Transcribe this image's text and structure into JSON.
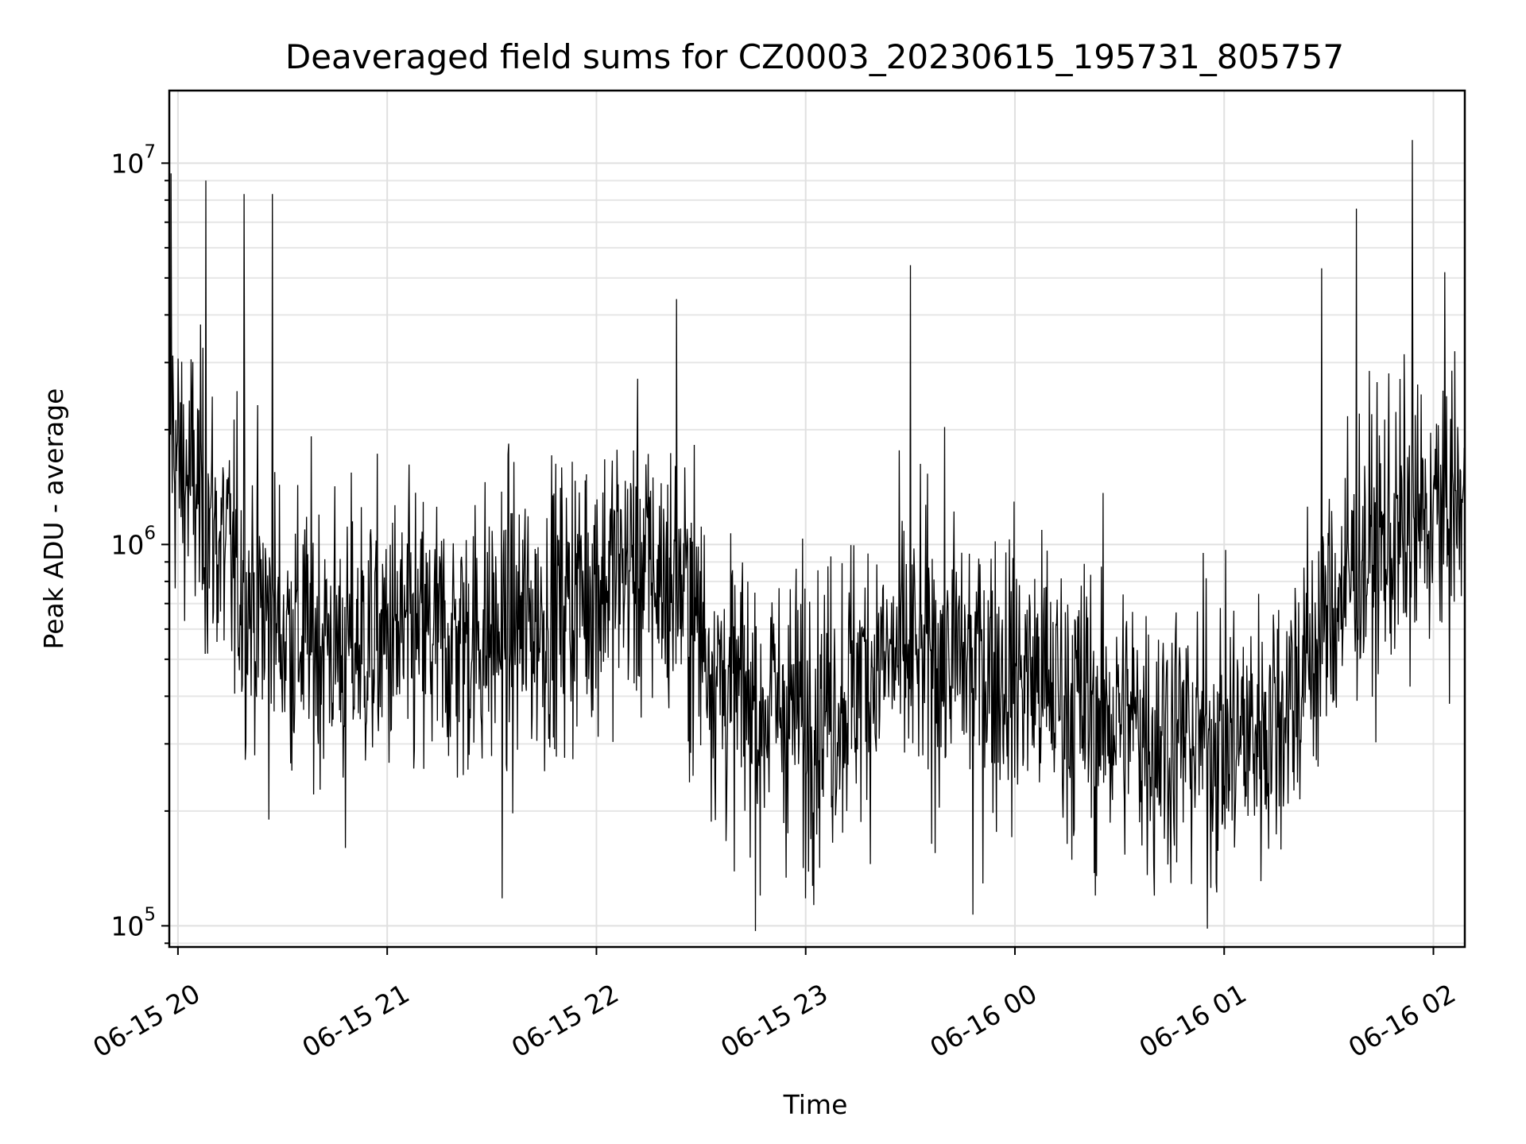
{
  "chart_data": {
    "type": "line",
    "title": "Deaveraged field sums for CZ0003_20230615_195731_805757",
    "xlabel": "Time",
    "ylabel": "Peak ADU - average",
    "yscale": "log",
    "ylim": [
      88000,
      15500000
    ],
    "xlim": [
      "2023-06-15 19:57:31",
      "2023-06-16 02:09:00"
    ],
    "grid": true,
    "x_ticks": [
      {
        "value": "2023-06-15 20:00",
        "label": "06-15 20"
      },
      {
        "value": "2023-06-15 21:00",
        "label": "06-15 21"
      },
      {
        "value": "2023-06-15 22:00",
        "label": "06-15 22"
      },
      {
        "value": "2023-06-15 23:00",
        "label": "06-15 23"
      },
      {
        "value": "2023-06-16 00:00",
        "label": "06-16 00"
      },
      {
        "value": "2023-06-16 01:00",
        "label": "06-16 01"
      },
      {
        "value": "2023-06-16 02:00",
        "label": "06-16 02"
      }
    ],
    "y_ticks": [
      {
        "value": 100000,
        "base": "10",
        "exp": "5"
      },
      {
        "value": 1000000,
        "base": "10",
        "exp": "6"
      },
      {
        "value": 10000000,
        "base": "10",
        "exp": "7"
      }
    ],
    "series": [
      {
        "color": "#000000",
        "x": [
          "2023-06-15 19:57",
          "2023-06-15 20:00",
          "2023-06-15 20:05",
          "2023-06-15 20:10",
          "2023-06-15 20:15",
          "2023-06-15 20:20",
          "2023-06-15 20:25",
          "2023-06-15 20:30",
          "2023-06-15 20:35",
          "2023-06-15 20:40",
          "2023-06-15 20:45",
          "2023-06-15 20:50",
          "2023-06-15 20:55",
          "2023-06-15 21:00",
          "2023-06-15 21:05",
          "2023-06-15 21:10",
          "2023-06-15 21:15",
          "2023-06-15 21:20",
          "2023-06-15 21:25",
          "2023-06-15 21:30",
          "2023-06-15 21:35",
          "2023-06-15 21:40",
          "2023-06-15 21:45",
          "2023-06-15 21:50",
          "2023-06-15 21:55",
          "2023-06-15 22:00",
          "2023-06-15 22:05",
          "2023-06-15 22:10",
          "2023-06-15 22:15",
          "2023-06-15 22:20",
          "2023-06-15 22:25",
          "2023-06-15 22:30",
          "2023-06-15 22:35",
          "2023-06-15 22:40",
          "2023-06-15 22:45",
          "2023-06-15 22:50",
          "2023-06-15 22:55",
          "2023-06-15 23:00",
          "2023-06-15 23:05",
          "2023-06-15 23:10",
          "2023-06-15 23:15",
          "2023-06-15 23:20",
          "2023-06-15 23:25",
          "2023-06-15 23:30",
          "2023-06-15 23:35",
          "2023-06-15 23:40",
          "2023-06-15 23:45",
          "2023-06-15 23:50",
          "2023-06-15 23:55",
          "2023-06-16 00:00",
          "2023-06-16 00:05",
          "2023-06-16 00:10",
          "2023-06-16 00:15",
          "2023-06-16 00:20",
          "2023-06-16 00:25",
          "2023-06-16 00:30",
          "2023-06-16 00:35",
          "2023-06-16 00:40",
          "2023-06-16 00:45",
          "2023-06-16 00:50",
          "2023-06-16 00:55",
          "2023-06-16 01:00",
          "2023-06-16 01:05",
          "2023-06-16 01:10",
          "2023-06-16 01:15",
          "2023-06-16 01:20",
          "2023-06-16 01:25",
          "2023-06-16 01:30",
          "2023-06-16 01:35",
          "2023-06-16 01:40",
          "2023-06-16 01:45",
          "2023-06-16 01:50",
          "2023-06-16 01:55",
          "2023-06-16 02:00",
          "2023-06-16 02:05",
          "2023-06-16 02:09"
        ],
        "y": [
          2500000,
          1600000,
          1400000,
          1100000,
          900000,
          750000,
          650000,
          600000,
          580000,
          570000,
          560000,
          560000,
          560000,
          560000,
          560000,
          560000,
          560000,
          560000,
          580000,
          580000,
          600000,
          620000,
          650000,
          700000,
          760000,
          800000,
          850000,
          900000,
          850000,
          800000,
          750000,
          600000,
          450000,
          400000,
          390000,
          380000,
          370000,
          370000,
          380000,
          400000,
          450000,
          480000,
          500000,
          510000,
          510000,
          510000,
          500000,
          490000,
          470000,
          460000,
          450000,
          420000,
          400000,
          380000,
          360000,
          350000,
          340000,
          330000,
          320000,
          310000,
          310000,
          300000,
          310000,
          330000,
          360000,
          420000,
          500000,
          650000,
          800000,
          900000,
          1000000,
          1050000,
          1100000,
          1200000,
          1300000,
          1250000
        ],
        "extremes": [
          {
            "x": "2023-06-15 19:58",
            "y": 9400000
          },
          {
            "x": "2023-06-15 20:08",
            "y": 9000000
          },
          {
            "x": "2023-06-15 20:19",
            "y": 8300000
          },
          {
            "x": "2023-06-15 20:27",
            "y": 8300000
          },
          {
            "x": "2023-06-15 20:26",
            "y": 190000
          },
          {
            "x": "2023-06-15 20:48",
            "y": 160000
          },
          {
            "x": "2023-06-15 21:33",
            "y": 118000
          },
          {
            "x": "2023-06-15 22:23",
            "y": 4400000
          },
          {
            "x": "2023-06-15 22:47",
            "y": 120000
          },
          {
            "x": "2023-06-15 23:00",
            "y": 118000
          },
          {
            "x": "2023-06-15 23:30",
            "y": 5400000
          },
          {
            "x": "2023-06-15 23:48",
            "y": 107000
          },
          {
            "x": "2023-06-16 00:23",
            "y": 120000
          },
          {
            "x": "2023-06-16 00:40",
            "y": 120000
          },
          {
            "x": "2023-06-16 01:28",
            "y": 5300000
          },
          {
            "x": "2023-06-16 01:38",
            "y": 7600000
          },
          {
            "x": "2023-06-16 01:54",
            "y": 11500000
          }
        ]
      }
    ]
  }
}
